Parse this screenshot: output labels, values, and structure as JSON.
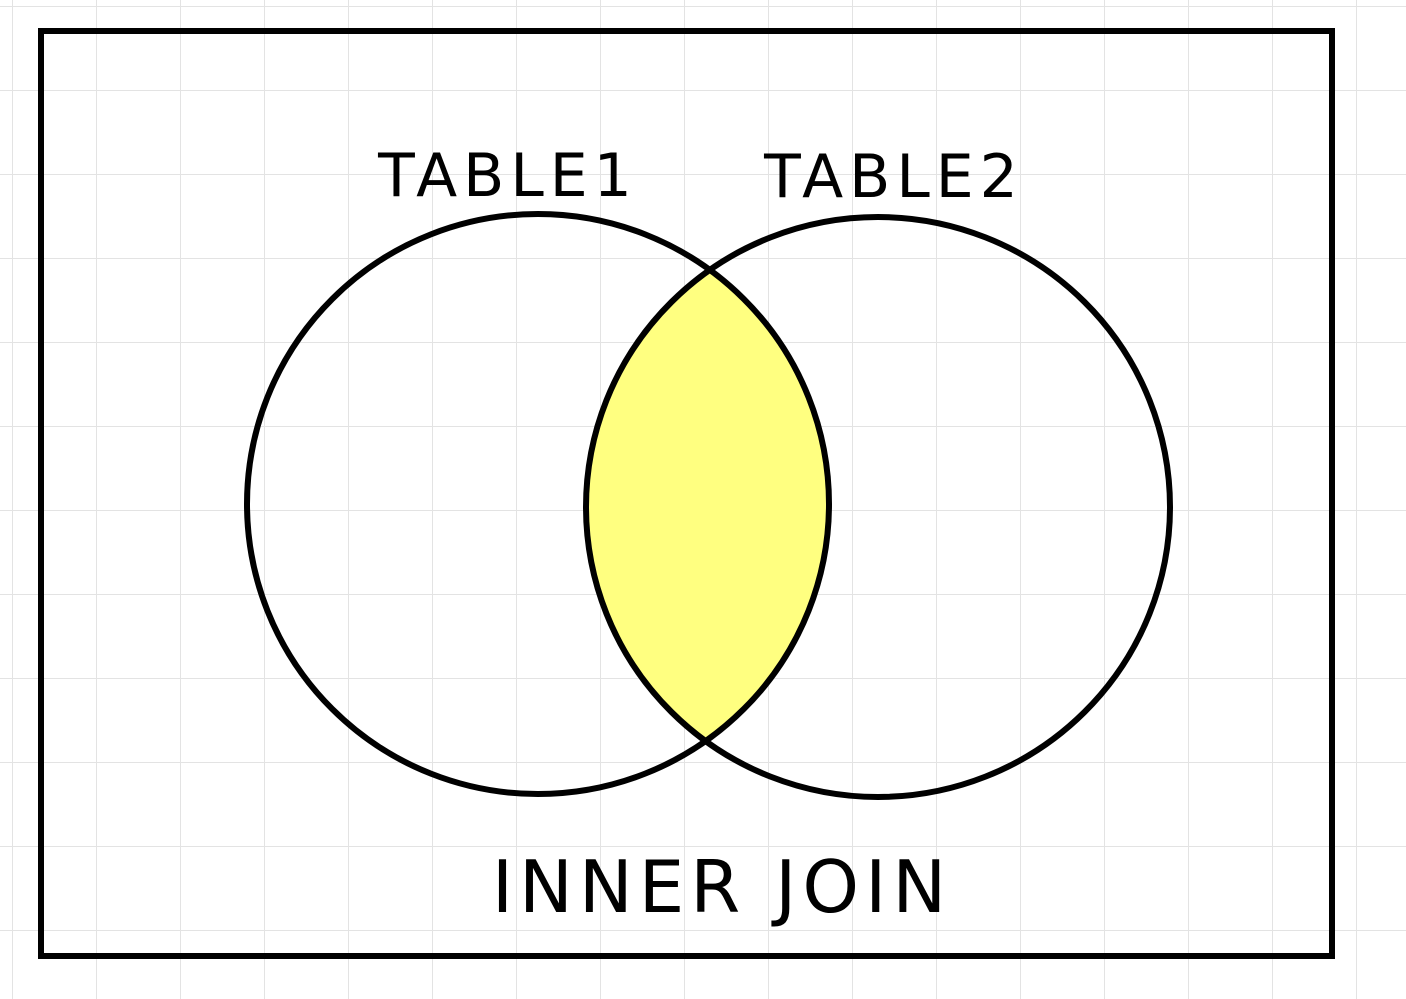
{
  "diagram": {
    "left_set_label": "TABLE1",
    "right_set_label": "TABLE2",
    "caption": "INNER JOIN"
  },
  "colors": {
    "background": "#ffffff",
    "grid_line": "#e3e3e3",
    "stroke": "#000000",
    "highlight": "#ffff80"
  }
}
